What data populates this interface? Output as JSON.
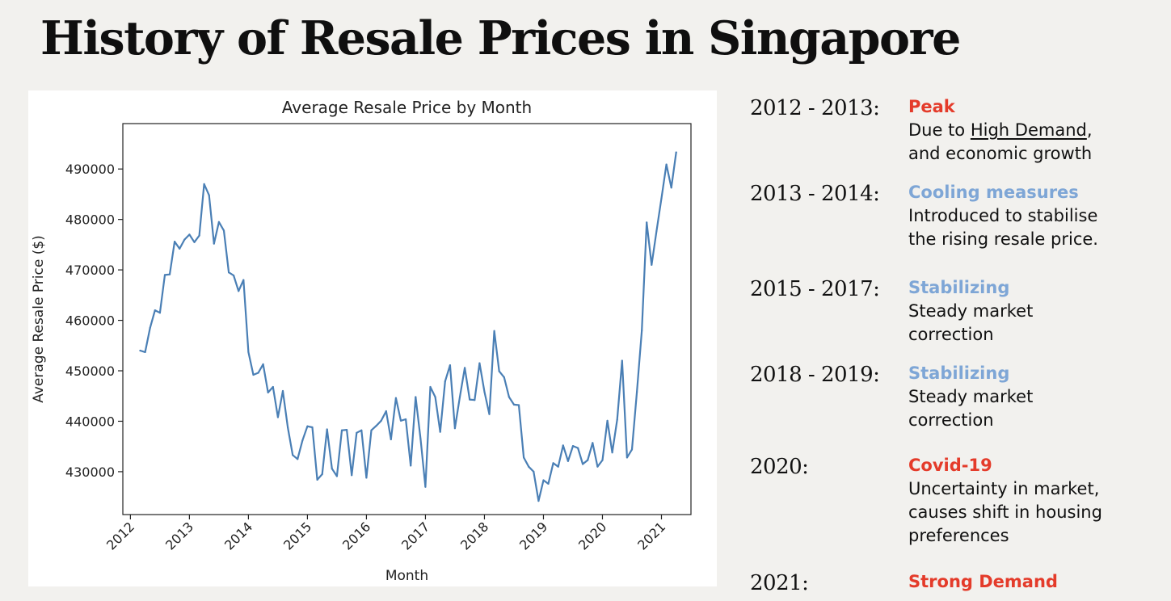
{
  "page": {
    "title": "History of Resale Prices in Singapore"
  },
  "timeline": [
    {
      "period": "2012 - 2013:",
      "heading": "Peak",
      "heading_color": "#e43b2a",
      "lines": [
        [
          "Due to ",
          {
            "u": "High Demand"
          },
          ","
        ],
        [
          "and economic growth"
        ]
      ]
    },
    {
      "period": "2013 - 2014:",
      "heading": "Cooling measures",
      "heading_color": "#7ea6d6",
      "lines": [
        [
          "Introduced to stabilise"
        ],
        [
          "the rising resale price."
        ]
      ]
    },
    {
      "period": "2015 - 2017:",
      "heading": "Stabilizing",
      "heading_color": "#7ea6d6",
      "lines": [
        [
          "Steady market"
        ],
        [
          "correction"
        ]
      ]
    },
    {
      "period": "2018 - 2019:",
      "heading": "Stabilizing",
      "heading_color": "#7ea6d6",
      "lines": [
        [
          "Steady market"
        ],
        [
          "correction"
        ]
      ]
    },
    {
      "period": "2020:",
      "heading": "Covid-19",
      "heading_color": "#e43b2a",
      "lines": [
        [
          "Uncertainty in market,"
        ],
        [
          "causes shift in housing"
        ],
        [
          "preferences"
        ]
      ]
    },
    {
      "period": "2021:",
      "heading": "Strong Demand",
      "heading_color": "#e43b2a",
      "lines": []
    }
  ],
  "chart_data": {
    "type": "line",
    "title": "Average Resale Price by Month",
    "xlabel": "Month",
    "ylabel": "Average Resale Price ($)",
    "x_ticks": [
      "2012",
      "2013",
      "2014",
      "2015",
      "2016",
      "2017",
      "2018",
      "2019",
      "2020",
      "2021"
    ],
    "y_ticks": [
      430000,
      440000,
      450000,
      460000,
      470000,
      480000,
      490000
    ],
    "xlim": [
      "2011-11-15",
      "2021-07-01"
    ],
    "ylim": [
      421500,
      499000
    ],
    "grid": false,
    "line_color": "#4a7fb5",
    "series": [
      {
        "x_start": "2012-03",
        "frequency": "monthly",
        "values": [
          454000,
          453700,
          458500,
          462000,
          461500,
          469000,
          469100,
          475600,
          474200,
          476000,
          477000,
          475500,
          476800,
          487000,
          484800,
          475200,
          479500,
          477800,
          469500,
          468900,
          465800,
          468000,
          453700,
          449200,
          449600,
          451300,
          445700,
          446800,
          440800,
          446000,
          438800,
          433300,
          432500,
          436200,
          439000,
          438800,
          428400,
          429500,
          438400,
          430600,
          429100,
          438200,
          438300,
          429300,
          437700,
          438200,
          428800,
          438200,
          439100,
          440100,
          442000,
          436400,
          444600,
          440100,
          440400,
          431200,
          444800,
          436500,
          427000,
          446800,
          444800,
          437900,
          447900,
          451100,
          438600,
          444800,
          450600,
          444300,
          444200,
          451500,
          445800,
          441400,
          457900,
          449900,
          448700,
          444800,
          443300,
          443200,
          432800,
          431000,
          430000,
          424200,
          428300,
          427600,
          431700,
          431000,
          435200,
          432100,
          435100,
          434700,
          431500,
          432300,
          435700,
          431000,
          432300,
          440100,
          433800,
          440300,
          452000,
          432800,
          434400,
          445800,
          458000,
          479400,
          471000,
          477700,
          484200,
          490900,
          486300,
          493300
        ]
      }
    ]
  }
}
